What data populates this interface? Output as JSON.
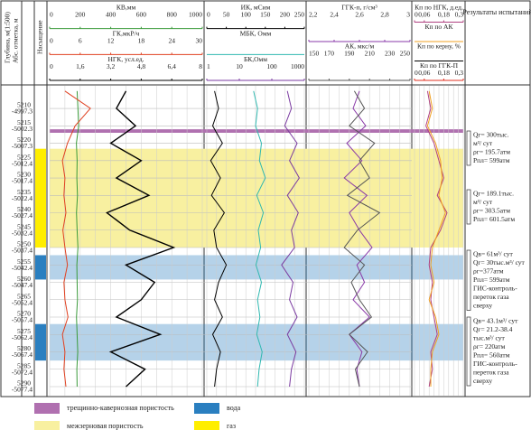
{
  "chart_data": {
    "type": "well-log",
    "header": {
      "depth_col": "Глубина, м(1:500)",
      "abs_col": "Абс. отметка, м",
      "saturation": "Насыщение",
      "results_title": "Результаты испытаний"
    },
    "depth_lim": [
      5203.5,
      5292.6
    ],
    "depth_ticks": [
      5210,
      5215,
      5220,
      5225,
      5230,
      5235,
      5240,
      5245,
      5250,
      5255,
      5260,
      5265,
      5270,
      5275,
      5280,
      5285,
      5290
    ],
    "abs_marks": [
      -4997.3,
      -5002.3,
      -5007.3,
      -5012.4,
      -5017.4,
      -5022.4,
      -5027.4,
      -5032.4,
      -5037.4,
      -5042.4,
      -5047.4,
      -5052.4,
      -5057.4,
      -5062.4,
      -5067.4,
      -5072.4,
      -5077.4
    ],
    "samples": [
      5205,
      5210,
      5215,
      5220,
      5225,
      5230,
      5235,
      5240,
      5245,
      5250,
      5255,
      5260,
      5265,
      5270,
      5275,
      5280,
      5285,
      5290
    ],
    "tracks": [
      {
        "curves": [
          {
            "name": "КВ,мм",
            "color": "#3a9a3a",
            "lim": [
              0,
              1000
            ],
            "ticks": [
              0,
              200,
              400,
              600,
              800,
              1000
            ],
            "values": [
              180,
              185,
              190,
              175,
              180,
              178,
              182,
              176,
              180,
              185,
              178,
              180,
              182,
              176,
              180,
              184,
              178,
              180
            ]
          },
          {
            "name": "ГК,мкР/ч",
            "color": "#e04020",
            "lim": [
              0,
              30
            ],
            "ticks": [
              0,
              6,
              12,
              18,
              24,
              30
            ],
            "values": [
              3,
              8,
              5,
              3.5,
              2.5,
              3,
              2.8,
              3.2,
              2.6,
              3,
              3.5,
              2.8,
              3,
              3.6,
              2.5,
              3,
              2.8,
              3.2
            ]
          },
          {
            "name": "НГК, усл.ед.",
            "color": "#000000",
            "lim": [
              0,
              8
            ],
            "ticks": [
              0,
              {
                "value": 1.6,
                "label": "1,6"
              },
              {
                "value": 3.2,
                "label": "3,2"
              },
              {
                "value": 4.8,
                "label": "4,8"
              },
              {
                "value": 6.4,
                "label": "6,4"
              },
              8
            ],
            "values": [
              4.0,
              3.5,
              4.5,
              3.2,
              4.8,
              3.5,
              5.2,
              3.0,
              4.2,
              6.5,
              4.0,
              5.5,
              4.8,
              3.5,
              5.8,
              3.2,
              5.0,
              4.0
            ]
          }
        ]
      },
      {
        "curves": [
          {
            "name": "ИК, мСим",
            "color": "#000000",
            "lim": [
              0,
              250
            ],
            "ticks": [
              0,
              50,
              100,
              150,
              200,
              250
            ],
            "values": [
              20,
              30,
              15,
              40,
              10,
              35,
              12,
              45,
              18,
              25,
              50,
              30,
              20,
              40,
              15,
              35,
              25,
              20
            ]
          },
          {
            "name": "МБК, Омм",
            "color": "#30b8b0",
            "lim": [
              0,
              250
            ],
            "values": [
              120,
              130,
              125,
              140,
              135,
              150,
              128,
              145,
              132,
              138,
              126,
              140,
              130,
              136,
              128,
              142,
              134,
              130
            ]
          },
          {
            "name": "БК,Омм",
            "color": "#7a3aa0",
            "lim": [
              1,
              1000
            ],
            "log": true,
            "ticks": [
              1,
              10,
              100,
              1000
            ],
            "values": [
              300,
              400,
              250,
              600,
              350,
              700,
              300,
              650,
              400,
              500,
              200,
              450,
              350,
              600,
              300,
              550,
              400,
              350
            ]
          }
        ]
      },
      {
        "curves": [
          {
            "name": "ГГК-п, г/см³",
            "color": "#8a3aa8",
            "lim": [
              2.2,
              3
            ],
            "ticks": [
              {
                "value": 2.2,
                "label": "2,2"
              },
              {
                "value": 2.4,
                "label": "2,4"
              },
              {
                "value": 2.6,
                "label": "2,6"
              },
              {
                "value": 2.8,
                "label": "2,8"
              },
              3
            ],
            "values": [
              2.6,
              2.55,
              2.65,
              2.5,
              2.62,
              2.48,
              2.66,
              2.52,
              2.6,
              2.7,
              2.58,
              2.64,
              2.55,
              2.68,
              2.52,
              2.62,
              2.58,
              2.6
            ]
          },
          {
            "name": "АК, мкс/м",
            "color": "#555555",
            "lim": [
              150,
              250
            ],
            "ticks": [
              150,
              170,
              190,
              210,
              230,
              250
            ],
            "values": [
              195,
              205,
              190,
              215,
              200,
              210,
              188,
              220,
              198,
              185,
              205,
              192,
              200,
              212,
              190,
              208,
              196,
              200
            ]
          }
        ]
      },
      {
        "curves": [
          {
            "name": "Кп по НГК, д.ед.",
            "color": "#b04080",
            "lim": [
              0,
              0.3
            ],
            "ticks": [
              0,
              {
                "value": 0.06,
                "label": "0,06"
              },
              {
                "value": 0.18,
                "label": "0,18"
              },
              {
                "value": 0.3,
                "label": "0,3"
              }
            ],
            "values": [
              0.08,
              0.1,
              0.07,
              0.12,
              0.15,
              0.18,
              0.14,
              0.2,
              0.16,
              0.1,
              0.09,
              0.11,
              0.1,
              0.12,
              0.14,
              0.1,
              0.11,
              0.09
            ]
          },
          {
            "name": "Кп по АК",
            "color": "#f0a020",
            "lim": [
              0,
              0.3
            ],
            "values": [
              0.09,
              0.11,
              0.08,
              0.13,
              0.16,
              0.17,
              0.15,
              0.19,
              0.15,
              0.11,
              0.1,
              0.12,
              0.09,
              0.13,
              0.15,
              0.11,
              0.1,
              0.1
            ]
          },
          {
            "name": "Кп по керну, %",
            "color": "#000000",
            "lim": [
              0,
              30
            ]
          },
          {
            "name": "Кп по ГГК-П",
            "color": "#e03020",
            "lim": [
              0,
              0.3
            ],
            "ticks": [
              0,
              {
                "value": 0.06,
                "label": "0,06"
              },
              {
                "value": 0.18,
                "label": "0,18"
              },
              {
                "value": 0.3,
                "label": "0,3"
              }
            ]
          }
        ]
      }
    ],
    "legend": [
      {
        "label": "трещинно-кавернозная пористость",
        "color": "#b070b0",
        "intervals": [
          [
            5216,
            5217
          ]
        ]
      },
      {
        "label": "межзерновая пористость",
        "color": "#f8f0a0",
        "intervals": [
          [
            5221.6,
            5250
          ]
        ]
      },
      {
        "label": "вода",
        "color": "#2a7fc0",
        "intervals": [
          [
            5252.2,
            5259.2
          ],
          [
            5272,
            5282.5
          ]
        ]
      },
      {
        "label": "газ",
        "color": "#ffee00",
        "intervals": [
          [
            5221.6,
            5250
          ]
        ]
      }
    ],
    "results": [
      [
        "Qг= 300тыс.",
        "м³/ сут",
        "ρг= 195.7атм",
        "Рпл= 599атм"
      ],
      [
        "Qг= 189.1тыс.",
        "м³/ сут",
        "ρг= 303.5атм",
        "Рпл= 601.5атм"
      ],
      [
        "Qв= 61м³/ сут",
        "Qг= 30тыс.м³/ сут",
        "ρг=377атм",
        "Рпл= 599атм",
        "ГИС-контроль-",
        "переток газа",
        "сверху"
      ],
      [
        "Qв= 43.1м³/ сут",
        "Qг= 21.2-38.4",
        "тыс.м³/ сут",
        "ρг= 220атм",
        "Рпл= 560атм",
        "ГИС-контроль-",
        "переток газа",
        "сверху"
      ]
    ]
  }
}
